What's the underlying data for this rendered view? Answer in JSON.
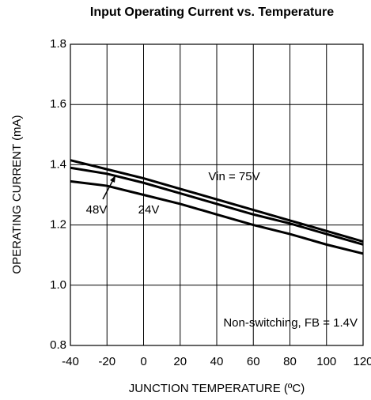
{
  "chart_data": {
    "type": "line",
    "title": "Input Operating Current vs. Temperature",
    "x_label": "JUNCTION TEMPERATURE (ºC)",
    "y_label": "OPERATING CURRENT (mA)",
    "x": [
      -40,
      -20,
      0,
      20,
      40,
      60,
      80,
      100,
      120
    ],
    "series": [
      {
        "name": "Vin = 75V",
        "color": "#000000",
        "values": [
          1.415,
          1.385,
          1.355,
          1.32,
          1.285,
          1.25,
          1.215,
          1.18,
          1.145
        ]
      },
      {
        "name": "48V",
        "color": "#000000",
        "values": [
          1.39,
          1.37,
          1.34,
          1.305,
          1.27,
          1.235,
          1.205,
          1.17,
          1.135
        ]
      },
      {
        "name": "24V",
        "color": "#000000",
        "values": [
          1.345,
          1.33,
          1.3,
          1.27,
          1.235,
          1.2,
          1.17,
          1.135,
          1.105
        ]
      }
    ],
    "annotations": [
      "Non-switching, FB = 1.4V"
    ],
    "xlim": [
      -40,
      120
    ],
    "xticks": [
      -40,
      -20,
      0,
      20,
      40,
      60,
      80,
      100,
      120
    ],
    "ylim": [
      0.8,
      1.8
    ],
    "yticks": [
      0.8,
      {
        "value": 1.0,
        "label": "1.0"
      },
      1.2,
      1.4,
      1.6,
      1.8
    ],
    "grid": true
  }
}
